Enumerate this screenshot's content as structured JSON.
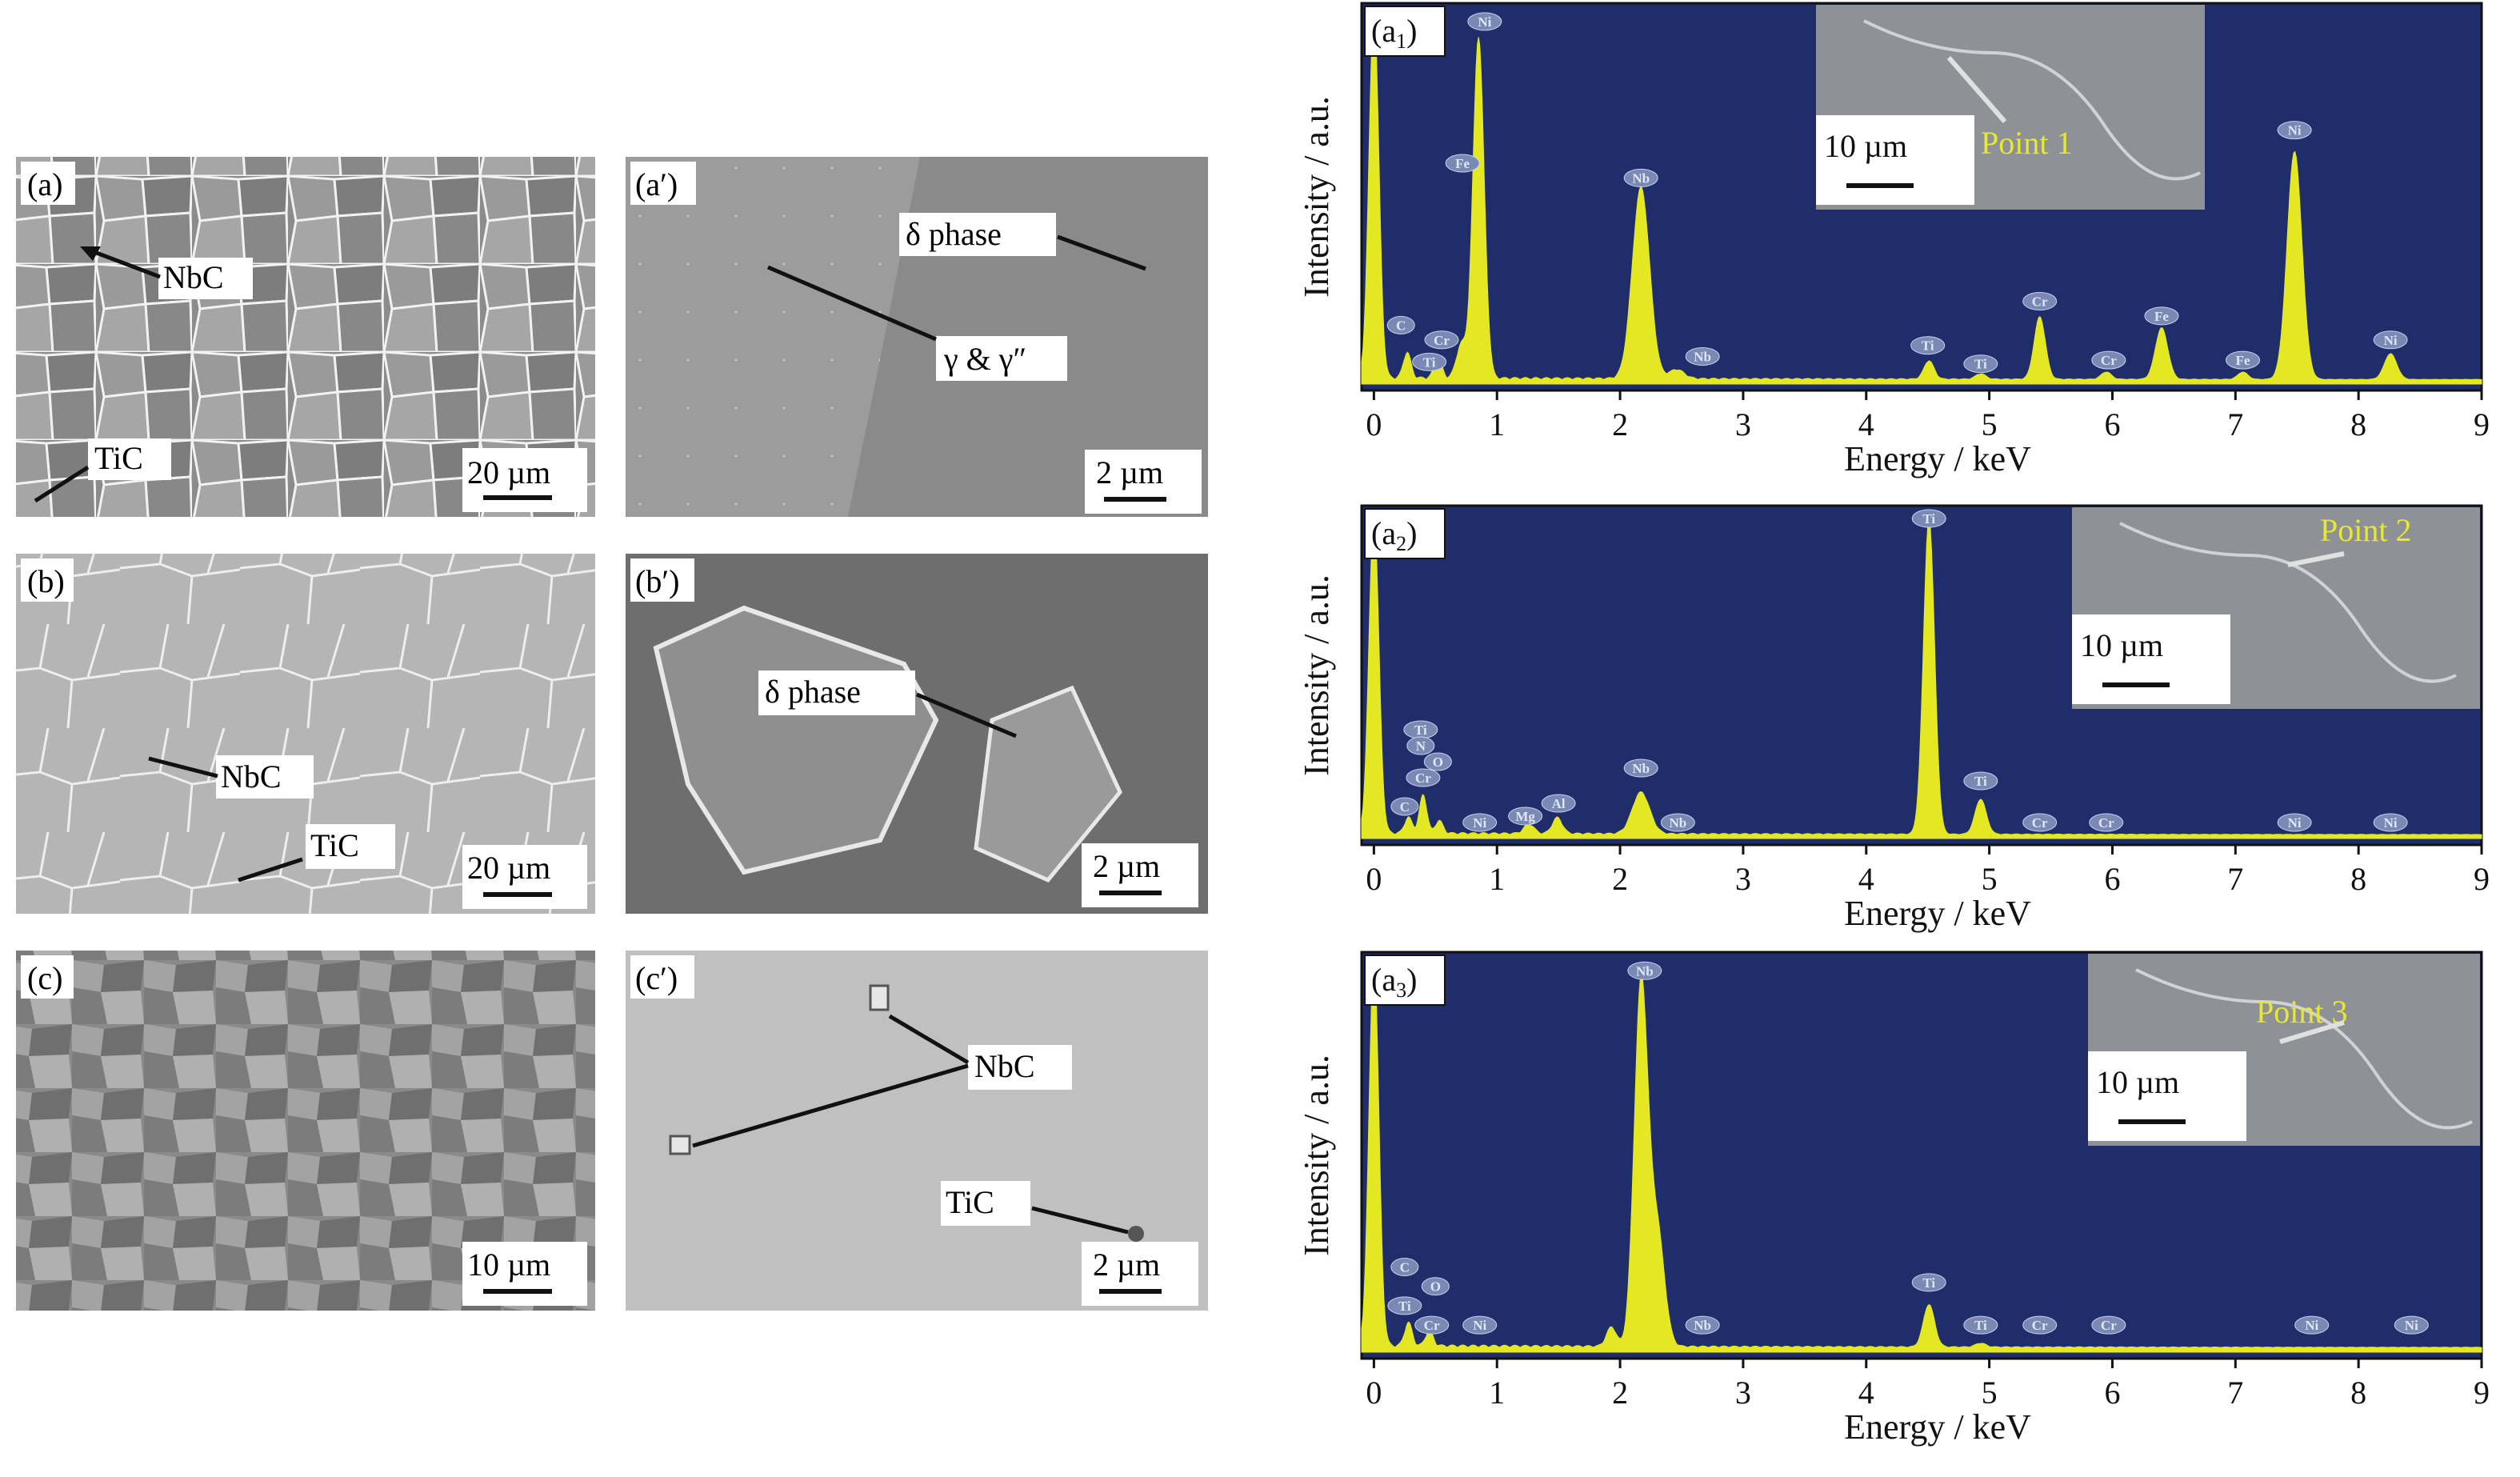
{
  "sem_panels": [
    {
      "label": "(a)",
      "scalebar": "20 µm",
      "annotations": [
        {
          "text": "NbC"
        },
        {
          "text": "TiC"
        }
      ]
    },
    {
      "label": "(a′)",
      "scalebar": "2 µm",
      "annotations": [
        {
          "text": "δ phase"
        },
        {
          "text": "γ & γ″"
        }
      ]
    },
    {
      "label": "(b)",
      "scalebar": "20 µm",
      "annotations": [
        {
          "text": "NbC"
        },
        {
          "text": "TiC"
        }
      ]
    },
    {
      "label": "(b′)",
      "scalebar": "2 µm",
      "annotations": [
        {
          "text": "δ phase"
        }
      ]
    },
    {
      "label": "(c)",
      "scalebar": "10 µm",
      "annotations": []
    },
    {
      "label": "(c′)",
      "scalebar": "2 µm",
      "annotations": [
        {
          "text": "NbC"
        },
        {
          "text": "TiC"
        }
      ]
    }
  ],
  "colors": {
    "plot_bg": "#1f2d6b",
    "spectrum_fill": "#e3e822",
    "peak_label_bg": "#7a88b4",
    "peak_label_text": "#dfe6f5",
    "inset_bg": "#8e9196",
    "point_label": "#e8e82e"
  },
  "chart_data": [
    {
      "type": "area",
      "panel_label": "(a1)",
      "label_base": "a",
      "label_sub": "1",
      "xlabel": "Energy / keV",
      "ylabel": "Intensity / a.u.",
      "xlim": [
        -0.1,
        9.0
      ],
      "ylim": [
        0,
        1.0
      ],
      "xticks": [
        0,
        1,
        2,
        3,
        4,
        5,
        6,
        7,
        8,
        9
      ],
      "inset": {
        "point_label": "Point 1",
        "scalebar": "10 µm"
      },
      "peaks": [
        {
          "x": 0.0,
          "h": 1.0,
          "w": 0.04
        },
        {
          "x": 0.27,
          "h": 0.07,
          "w": 0.03
        },
        {
          "x": 0.52,
          "h": 0.06,
          "w": 0.03
        },
        {
          "x": 0.71,
          "h": 0.09,
          "w": 0.04
        },
        {
          "x": 0.85,
          "h": 0.93,
          "w": 0.045
        },
        {
          "x": 2.17,
          "h": 0.52,
          "w": 0.07
        },
        {
          "x": 2.46,
          "h": 0.025,
          "w": 0.06
        },
        {
          "x": 4.51,
          "h": 0.05,
          "w": 0.04
        },
        {
          "x": 4.93,
          "h": 0.015,
          "w": 0.04
        },
        {
          "x": 5.41,
          "h": 0.17,
          "w": 0.045
        },
        {
          "x": 5.95,
          "h": 0.02,
          "w": 0.04
        },
        {
          "x": 6.4,
          "h": 0.14,
          "w": 0.05
        },
        {
          "x": 7.06,
          "h": 0.02,
          "w": 0.04
        },
        {
          "x": 7.48,
          "h": 0.62,
          "w": 0.06
        },
        {
          "x": 8.26,
          "h": 0.07,
          "w": 0.05
        }
      ],
      "peak_labels": [
        {
          "text": "Ni",
          "x": 0.9,
          "y": 0.985
        },
        {
          "text": "Fe",
          "x": 0.72,
          "y": 0.6
        },
        {
          "text": "Nb",
          "x": 2.17,
          "y": 0.56
        },
        {
          "text": "C",
          "x": 0.22,
          "y": 0.16
        },
        {
          "text": "Cr",
          "x": 0.55,
          "y": 0.12
        },
        {
          "text": "Ti",
          "x": 0.45,
          "y": 0.06
        },
        {
          "text": "Nb",
          "x": 2.67,
          "y": 0.075
        },
        {
          "text": "Ti",
          "x": 4.5,
          "y": 0.105
        },
        {
          "text": "Ti",
          "x": 4.93,
          "y": 0.055
        },
        {
          "text": "Cr",
          "x": 5.41,
          "y": 0.225
        },
        {
          "text": "Cr",
          "x": 5.97,
          "y": 0.065
        },
        {
          "text": "Fe",
          "x": 6.4,
          "y": 0.185
        },
        {
          "text": "Fe",
          "x": 7.06,
          "y": 0.065
        },
        {
          "text": "Ni",
          "x": 7.48,
          "y": 0.69
        },
        {
          "text": "Ni",
          "x": 8.26,
          "y": 0.12
        }
      ]
    },
    {
      "type": "area",
      "panel_label": "(a2)",
      "label_base": "a",
      "label_sub": "2",
      "xlabel": "Energy / keV",
      "ylabel": "Intensity / a.u.",
      "xlim": [
        -0.1,
        9.0
      ],
      "ylim": [
        0,
        1.0
      ],
      "xticks": [
        0,
        1,
        2,
        3,
        4,
        5,
        6,
        7,
        8,
        9
      ],
      "inset": {
        "point_label": "Point 2",
        "scalebar": "10 µm"
      },
      "peaks": [
        {
          "x": 0.0,
          "h": 1.0,
          "w": 0.04
        },
        {
          "x": 0.28,
          "h": 0.05,
          "w": 0.03
        },
        {
          "x": 0.4,
          "h": 0.12,
          "w": 0.03
        },
        {
          "x": 0.53,
          "h": 0.04,
          "w": 0.03
        },
        {
          "x": 1.26,
          "h": 0.03,
          "w": 0.04
        },
        {
          "x": 1.49,
          "h": 0.05,
          "w": 0.04
        },
        {
          "x": 2.17,
          "h": 0.13,
          "w": 0.07
        },
        {
          "x": 4.51,
          "h": 0.99,
          "w": 0.045
        },
        {
          "x": 4.93,
          "h": 0.11,
          "w": 0.045
        }
      ],
      "peak_labels": [
        {
          "text": "Ti",
          "x": 4.51,
          "y": 1.0
        },
        {
          "text": "Ti",
          "x": 0.38,
          "y": 0.34
        },
        {
          "text": "N",
          "x": 0.38,
          "y": 0.29
        },
        {
          "text": "O",
          "x": 0.52,
          "y": 0.24
        },
        {
          "text": "Cr",
          "x": 0.4,
          "y": 0.19
        },
        {
          "text": "C",
          "x": 0.25,
          "y": 0.1
        },
        {
          "text": "Ni",
          "x": 0.86,
          "y": 0.05
        },
        {
          "text": "Mg",
          "x": 1.23,
          "y": 0.07
        },
        {
          "text": "Al",
          "x": 1.5,
          "y": 0.11
        },
        {
          "text": "Nb",
          "x": 2.17,
          "y": 0.22
        },
        {
          "text": "Nb",
          "x": 2.47,
          "y": 0.05
        },
        {
          "text": "Ti",
          "x": 4.93,
          "y": 0.18
        },
        {
          "text": "Cr",
          "x": 5.41,
          "y": 0.05
        },
        {
          "text": "Cr",
          "x": 5.95,
          "y": 0.05
        },
        {
          "text": "Ni",
          "x": 7.48,
          "y": 0.05
        },
        {
          "text": "Ni",
          "x": 8.26,
          "y": 0.05
        }
      ]
    },
    {
      "type": "area",
      "panel_label": "(a3)",
      "label_base": "a",
      "label_sub": "3",
      "xlabel": "Energy / keV",
      "ylabel": "Intensity / a.u.",
      "xlim": [
        -0.1,
        9.0
      ],
      "ylim": [
        0,
        1.0
      ],
      "xticks": [
        0,
        1,
        2,
        3,
        4,
        5,
        6,
        7,
        8,
        9
      ],
      "inset": {
        "point_label": "Point 3",
        "scalebar": "10 µm"
      },
      "peaks": [
        {
          "x": 0.0,
          "h": 1.0,
          "w": 0.04
        },
        {
          "x": 0.28,
          "h": 0.06,
          "w": 0.03
        },
        {
          "x": 0.45,
          "h": 0.04,
          "w": 0.03
        },
        {
          "x": 1.93,
          "h": 0.05,
          "w": 0.04
        },
        {
          "x": 2.17,
          "h": 0.93,
          "w": 0.055
        },
        {
          "x": 2.3,
          "h": 0.3,
          "w": 0.06
        },
        {
          "x": 4.51,
          "h": 0.11,
          "w": 0.045
        },
        {
          "x": 4.93,
          "h": 0.01,
          "w": 0.04
        }
      ],
      "peak_labels": [
        {
          "text": "Nb",
          "x": 2.2,
          "y": 0.985
        },
        {
          "text": "C",
          "x": 0.25,
          "y": 0.22
        },
        {
          "text": "O",
          "x": 0.5,
          "y": 0.17
        },
        {
          "text": "Ti",
          "x": 0.25,
          "y": 0.12
        },
        {
          "text": "Cr",
          "x": 0.47,
          "y": 0.07
        },
        {
          "text": "Ni",
          "x": 0.86,
          "y": 0.07
        },
        {
          "text": "Nb",
          "x": 2.67,
          "y": 0.07
        },
        {
          "text": "Ti",
          "x": 4.51,
          "y": 0.18
        },
        {
          "text": "Ti",
          "x": 4.93,
          "y": 0.07
        },
        {
          "text": "Cr",
          "x": 5.41,
          "y": 0.07
        },
        {
          "text": "Cr",
          "x": 5.97,
          "y": 0.07
        },
        {
          "text": "Ni",
          "x": 7.62,
          "y": 0.07
        },
        {
          "text": "Ni",
          "x": 8.43,
          "y": 0.07
        }
      ]
    }
  ]
}
